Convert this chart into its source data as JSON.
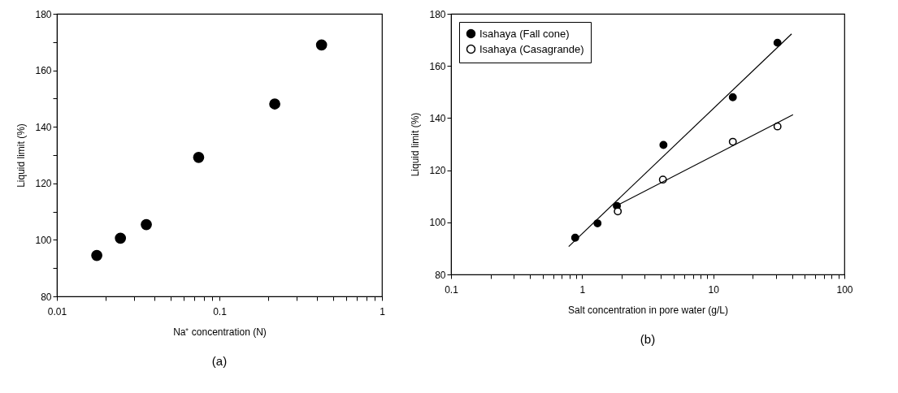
{
  "chart_data": [
    {
      "type": "scatter",
      "title": "(a)",
      "xlabel": "Na⁺ concentration (N)",
      "ylabel": "Liquid limit (%)",
      "log": "x",
      "marker": "circle",
      "grid": false,
      "x": [
        0.0176,
        0.0246,
        0.0355,
        0.0745,
        0.219,
        0.425
      ],
      "values": [
        94.5,
        100.6,
        105.4,
        129.2,
        148.1,
        169.0
      ],
      "color": "#000000",
      "xlim": [
        0.01,
        1
      ],
      "xticks": [
        0.01,
        {
          "value": 0.02,
          "label": null
        },
        {
          "value": 0.03,
          "label": null
        },
        {
          "value": 0.04,
          "label": null
        },
        {
          "value": 0.05,
          "label": null
        },
        {
          "value": 0.06,
          "label": null
        },
        {
          "value": 0.07,
          "label": null
        },
        {
          "value": 0.08,
          "label": null
        },
        {
          "value": 0.09,
          "label": null
        },
        0.1,
        {
          "value": 0.2,
          "label": null
        },
        {
          "value": 0.3,
          "label": null
        },
        {
          "value": 0.4,
          "label": null
        },
        {
          "value": 0.5,
          "label": null
        },
        {
          "value": 0.6,
          "label": null
        },
        {
          "value": 0.7,
          "label": null
        },
        {
          "value": 0.8,
          "label": null
        },
        {
          "value": 0.9,
          "label": null
        },
        1
      ],
      "ylim": [
        80,
        180
      ],
      "yticks": [
        80,
        {
          "value": 90,
          "label": null
        },
        100,
        {
          "value": 110,
          "label": null
        },
        120,
        {
          "value": 130,
          "label": null
        },
        140,
        {
          "value": 150,
          "label": null
        },
        160,
        {
          "value": 170,
          "label": null
        },
        180
      ]
    },
    {
      "type": "scatter",
      "title": "(b)",
      "xlabel": "Salt concentration in pore water (g/L)",
      "ylabel": "Liquid limit (%)",
      "log": "x",
      "grid": false,
      "legend": "top left",
      "series": [
        {
          "name": "Isahaya (Fall cone)",
          "color": "#000000",
          "marker": "circle",
          "x": [
            0.885,
            1.31,
            1.84,
            4.17,
            14.1,
            30.9
          ],
          "values": [
            94.1,
            99.6,
            106.3,
            129.7,
            148.0,
            168.9
          ]
        },
        {
          "name": "Isahaya (Casagrande)",
          "color": "#000000",
          "marker": "circle",
          "x": [
            1.87,
            4.13,
            14.1,
            30.9
          ],
          "values": [
            104.2,
            116.4,
            130.9,
            136.8
          ]
        },
        {
          "type": "line",
          "color": "#000000",
          "marker": "none",
          "x": [
            0.79,
            39.6
          ],
          "values": [
            90.7,
            172.3
          ]
        },
        {
          "type": "line",
          "color": "#000000",
          "marker": "none",
          "x": [
            1.77,
            40.6
          ],
          "values": [
            106.0,
            141.3
          ]
        }
      ],
      "xlim": [
        0.1,
        100
      ],
      "xticks": [
        0.1,
        {
          "value": 0.2,
          "label": null
        },
        {
          "value": 0.3,
          "label": null
        },
        {
          "value": 0.4,
          "label": null
        },
        {
          "value": 0.5,
          "label": null
        },
        {
          "value": 0.6,
          "label": null
        },
        {
          "value": 0.7,
          "label": null
        },
        {
          "value": 0.8,
          "label": null
        },
        {
          "value": 0.9,
          "label": null
        },
        1,
        {
          "value": 2,
          "label": null
        },
        {
          "value": 3,
          "label": null
        },
        {
          "value": 4,
          "label": null
        },
        {
          "value": 5,
          "label": null
        },
        {
          "value": 6,
          "label": null
        },
        {
          "value": 7,
          "label": null
        },
        {
          "value": 8,
          "label": null
        },
        {
          "value": 9,
          "label": null
        },
        10,
        {
          "value": 20,
          "label": null
        },
        {
          "value": 30,
          "label": null
        },
        {
          "value": 40,
          "label": null
        },
        {
          "value": 50,
          "label": null
        },
        {
          "value": 60,
          "label": null
        },
        {
          "value": 70,
          "label": null
        },
        {
          "value": 80,
          "label": null
        },
        {
          "value": 90,
          "label": null
        },
        100
      ],
      "ylim": [
        80,
        180
      ],
      "yticks": [
        80,
        100,
        120,
        140,
        160,
        180
      ]
    }
  ]
}
